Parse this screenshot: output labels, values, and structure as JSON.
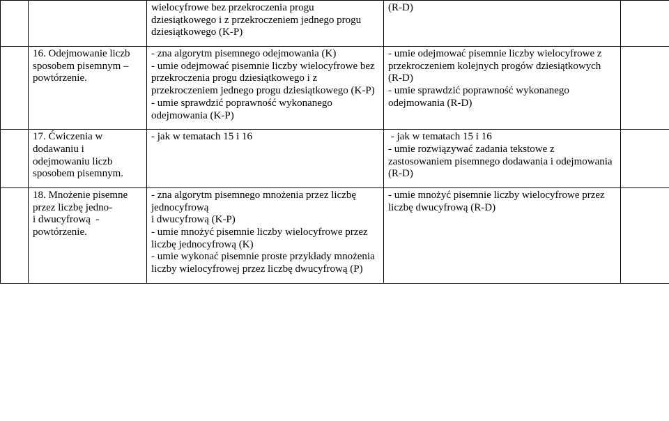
{
  "row1": {
    "col3": "wielocyfrowe bez przekroczenia progu dziesiątkowego i z przekroczeniem jednego progu dziesiątkowego (K-P)",
    "col4": "(R-D)"
  },
  "row2": {
    "col2": "16. Odejmowanie liczb sposobem pisemnym – powtórzenie.",
    "col3": "- zna algorytm pisemnego odejmowania (K)\n- umie odejmować pisemnie liczby wielocyfrowe bez przekroczenia progu dziesiątkowego i z przekroczeniem jednego progu dziesiątkowego (K-P)\n- umie sprawdzić poprawność wykonanego odejmowania (K-P)",
    "col4": "- umie odejmować pisemnie liczby wielocyfrowe z przekroczeniem kolejnych progów dziesiątkowych (R-D)\n- umie sprawdzić poprawność wykonanego odejmowania (R-D)"
  },
  "row3": {
    "col2": "17. Ćwiczenia w dodawaniu i odejmowaniu liczb sposobem pisemnym.",
    "col3": "- jak w tematach 15 i 16",
    "col4": " - jak w tematach 15 i 16\n- umie rozwiązywać zadania tekstowe z zastosowaniem pisemnego dodawania i odejmowania (R-D)"
  },
  "row4": {
    "col2": "18. Mnożenie pisemne przez liczbę jedno-\ni dwucyfrową  - powtórzenie.",
    "col3": "- zna algorytm pisemnego mnożenia przez liczbę jednocyfrową\ni dwucyfrową (K-P)\n- umie mnożyć pisemnie liczby wielocyfrowe przez liczbę jednocyfrową (K)\n- umie wykonać pisemnie proste przykłady mnożenia liczby wielocyfrowej przez liczbę dwucyfrową (P)",
    "col4": "- umie mnożyć pisemnie liczby wielocyfrowe przez liczbę dwucyfrową (R-D)"
  }
}
